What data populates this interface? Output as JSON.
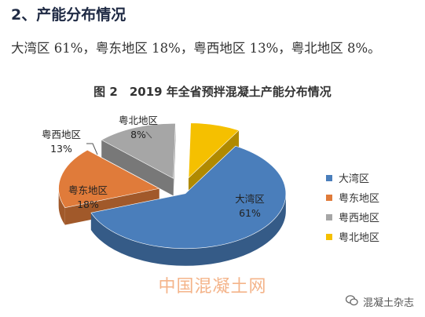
{
  "section_heading": "2、产能分布情况",
  "summary_text": "大湾区 61%，粤东地区 18%，粤西地区 13%，粤北地区 8%。",
  "chart_title": "图 2　2019 年全省预拌混凝土产能分布情况",
  "chart_data": {
    "type": "pie",
    "title": "图 2　2019 年全省预拌混凝土产能分布情况",
    "legend_position": "right",
    "categories": [
      "大湾区",
      "粤东地区",
      "粤西地区",
      "粤北地区"
    ],
    "values": [
      61,
      18,
      13,
      8
    ],
    "labels": [
      "61%",
      "18%",
      "13%",
      "8%"
    ],
    "colors": [
      "#4a7ebb",
      "#e07b3a",
      "#a6a6a6",
      "#f5c000"
    ],
    "style": "3d-exploded"
  },
  "legend": [
    {
      "label": "大湾区",
      "color": "#4a7ebb"
    },
    {
      "label": "粤东地区",
      "color": "#e07b3a"
    },
    {
      "label": "粤西地区",
      "color": "#a6a6a6"
    },
    {
      "label": "粤北地区",
      "color": "#f5c000"
    }
  ],
  "watermark": "中国混凝土网",
  "source_account": "混凝土杂志",
  "icons": {
    "source": "wechat-icon"
  }
}
